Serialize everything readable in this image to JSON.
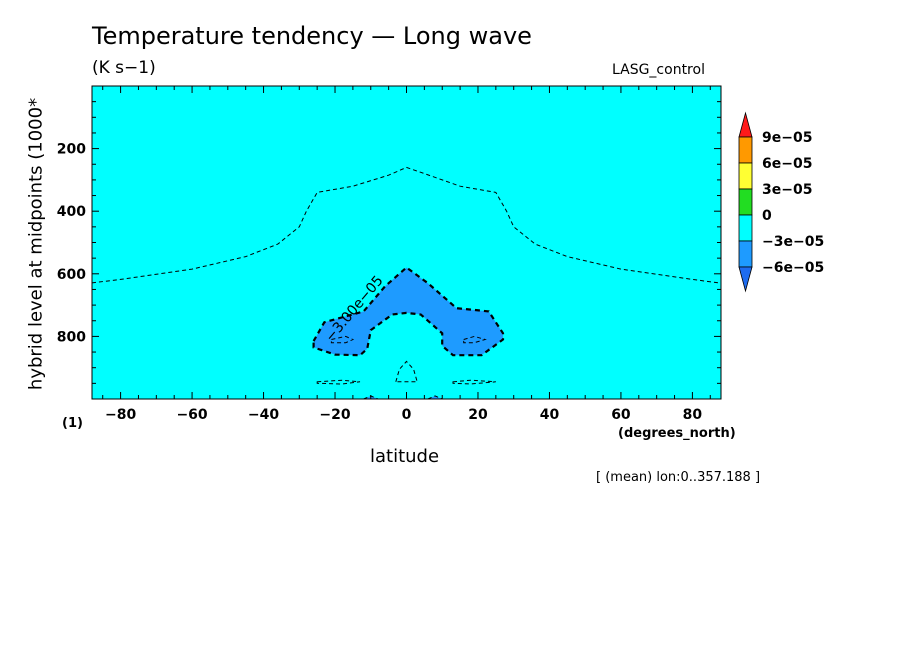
{
  "chart_data": {
    "type": "heatmap",
    "title": "Temperature tendency — Long wave",
    "units": "(K s−1)",
    "dataset": "LASG_control",
    "xlabel": "latitude",
    "x_units": "(degrees_north)",
    "ylabel": "hybrid level at midpoints (1000*",
    "corner_label": "(1)",
    "footnote": "[ (mean) lon:0..357.188 ]",
    "xlim": [
      -88,
      88
    ],
    "ylim": [
      1000,
      0
    ],
    "x_ticks": [
      -80,
      -60,
      -40,
      -20,
      0,
      20,
      40,
      60,
      80
    ],
    "x_tick_labels": [
      "−80",
      "−60",
      "−40",
      "−20",
      "0",
      "20",
      "40",
      "60",
      "80"
    ],
    "y_ticks": [
      200,
      400,
      600,
      800
    ],
    "y_tick_labels": [
      "200",
      "400",
      "600",
      "800"
    ],
    "colorbar": {
      "levels": [
        "9e−05",
        "6e−05",
        "3e−05",
        "0",
        "−3e−05",
        "−6e−05"
      ],
      "colors": {
        "above": "#ff1a1a",
        "9e-05": "#ff9900",
        "6e-05": "#ffff33",
        "3e-05": "#22dd22",
        "0": "#00ffff",
        "-3e-05": "#1e9bff",
        "below": "#1e6cf0"
      }
    },
    "background_color": "#00ffff",
    "region_color": "#1e9bff",
    "contour_label": "−3.00e−05",
    "contours": [
      {
        "level": "-3e-05",
        "style": "dashed-thin",
        "points": [
          [
            -88,
            629
          ],
          [
            -80,
            618
          ],
          [
            -60,
            585
          ],
          [
            -45,
            545
          ],
          [
            -36,
            505
          ],
          [
            -30,
            450
          ],
          [
            -28,
            400
          ],
          [
            -25,
            340
          ],
          [
            -15,
            320
          ],
          [
            -5,
            285
          ],
          [
            0,
            260
          ],
          [
            5,
            280
          ],
          [
            15,
            320
          ],
          [
            25,
            340
          ],
          [
            28,
            400
          ],
          [
            30,
            450
          ],
          [
            36,
            505
          ],
          [
            45,
            545
          ],
          [
            60,
            585
          ],
          [
            80,
            618
          ],
          [
            88,
            630
          ]
        ]
      },
      {
        "level": "-6e-05",
        "style": "dashed-thick",
        "filled": true,
        "points": [
          [
            -26,
            815
          ],
          [
            -23,
            755
          ],
          [
            -12,
            720
          ],
          [
            -6,
            640
          ],
          [
            0,
            580
          ],
          [
            6,
            630
          ],
          [
            11,
            680
          ],
          [
            14,
            710
          ],
          [
            23,
            720
          ],
          [
            27,
            790
          ],
          [
            27,
            810
          ],
          [
            21,
            860
          ],
          [
            13,
            860
          ],
          [
            10,
            830
          ],
          [
            10,
            790
          ],
          [
            4,
            730
          ],
          [
            0,
            725
          ],
          [
            -4,
            730
          ],
          [
            -10,
            780
          ],
          [
            -11,
            840
          ],
          [
            -13,
            860
          ],
          [
            -20,
            858
          ],
          [
            -26,
            835
          ]
        ]
      },
      {
        "level": "-9e-05",
        "style": "dashed-thin",
        "points": [
          [
            -21,
            810
          ],
          [
            -17,
            800
          ],
          [
            -15,
            810
          ],
          [
            -17,
            820
          ],
          [
            -21,
            820
          ]
        ]
      },
      {
        "level": "-9e-05",
        "style": "dashed-thin",
        "points": [
          [
            16,
            810
          ],
          [
            19,
            800
          ],
          [
            22,
            810
          ],
          [
            19,
            820
          ],
          [
            16,
            820
          ]
        ]
      },
      {
        "level": "-3e-05",
        "style": "dashed-thin",
        "points": [
          [
            -25,
            945
          ],
          [
            -18,
            940
          ],
          [
            -13,
            945
          ],
          [
            -18,
            952
          ],
          [
            -25,
            950
          ]
        ]
      },
      {
        "level": "-3e-05",
        "style": "dashed-thin",
        "points": [
          [
            13,
            945
          ],
          [
            18,
            940
          ],
          [
            25,
            945
          ],
          [
            18,
            952
          ],
          [
            13,
            950
          ]
        ]
      },
      {
        "level": "-3e-05",
        "style": "dashed-thin",
        "points": [
          [
            -3,
            945
          ],
          [
            -2,
            905
          ],
          [
            0,
            880
          ],
          [
            2,
            905
          ],
          [
            3,
            945
          ]
        ]
      },
      {
        "level": "-3e-05",
        "style": "dashed-thin",
        "points": [
          [
            -12,
            1000
          ],
          [
            -10,
            990
          ],
          [
            -8,
            1000
          ]
        ]
      },
      {
        "level": "-3e-05",
        "style": "dashed-thin",
        "points": [
          [
            6,
            1000
          ],
          [
            8,
            990
          ],
          [
            10,
            1000
          ]
        ]
      }
    ],
    "filled_regions": [
      {
        "level": "-6e-05",
        "points": [
          [
            -12,
            1000
          ],
          [
            -10,
            990
          ],
          [
            -8,
            1000
          ]
        ]
      },
      {
        "level": "-6e-05",
        "points": [
          [
            6,
            1000
          ],
          [
            8,
            990
          ],
          [
            10,
            1000
          ]
        ]
      }
    ]
  }
}
